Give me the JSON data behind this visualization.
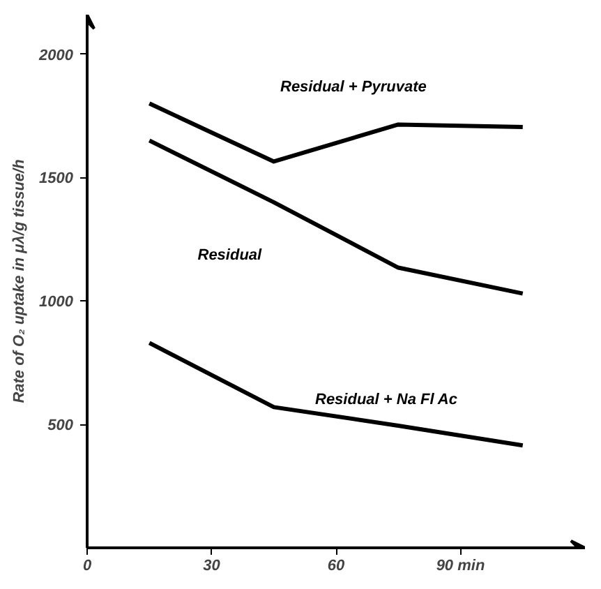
{
  "chart_data": {
    "type": "line",
    "ylabel": "Rate of O₂ uptake in μλ/g tissue/h",
    "x": [
      15,
      45,
      75,
      105
    ],
    "series": [
      {
        "name": "Residual + Pyruvate",
        "color": "#000000",
        "values": [
          1800,
          1565,
          1715,
          1705
        ]
      },
      {
        "name": "Residual",
        "color": "#000000",
        "values": [
          1650,
          1400,
          1135,
          1030
        ]
      },
      {
        "name": "Residual + Na Fl Ac",
        "color": "#000000",
        "x": [
          15,
          45,
          75,
          105
        ],
        "values": [
          830,
          570,
          495,
          415
        ]
      }
    ],
    "xlim": [
      0,
      120
    ],
    "ylim": [
      0,
      2160
    ],
    "xticks": [
      0,
      30,
      60,
      {
        "value": 90,
        "label": "90 min"
      }
    ],
    "yticks": [
      500,
      1000,
      1500,
      2000
    ],
    "grid": false,
    "legend": false,
    "marker": "none",
    "line_style": "solid"
  }
}
